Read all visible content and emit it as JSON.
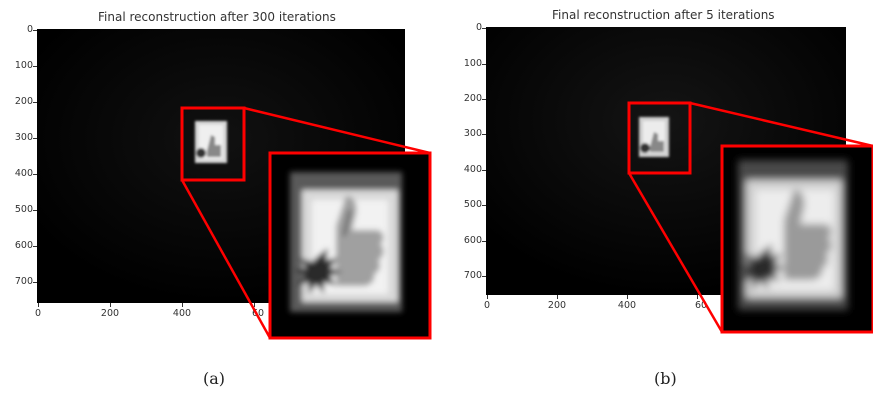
{
  "figures": [
    {
      "title": "Final reconstruction after 300 iterations",
      "caption": "(a)",
      "yticks": [
        "0",
        "100",
        "200",
        "300",
        "400",
        "500",
        "600",
        "700"
      ],
      "xticks": [
        "0",
        "200",
        "400",
        "60"
      ]
    },
    {
      "title": "Final reconstruction after 5 iterations",
      "caption": "(b)",
      "yticks": [
        "0",
        "100",
        "200",
        "300",
        "400",
        "500",
        "600",
        "700"
      ],
      "xticks": [
        "0",
        "200",
        "400",
        "60"
      ]
    }
  ],
  "colors": {
    "highlight": "#ff0000",
    "background": "#000000"
  },
  "icons": [
    "thumbs-up-icon"
  ]
}
